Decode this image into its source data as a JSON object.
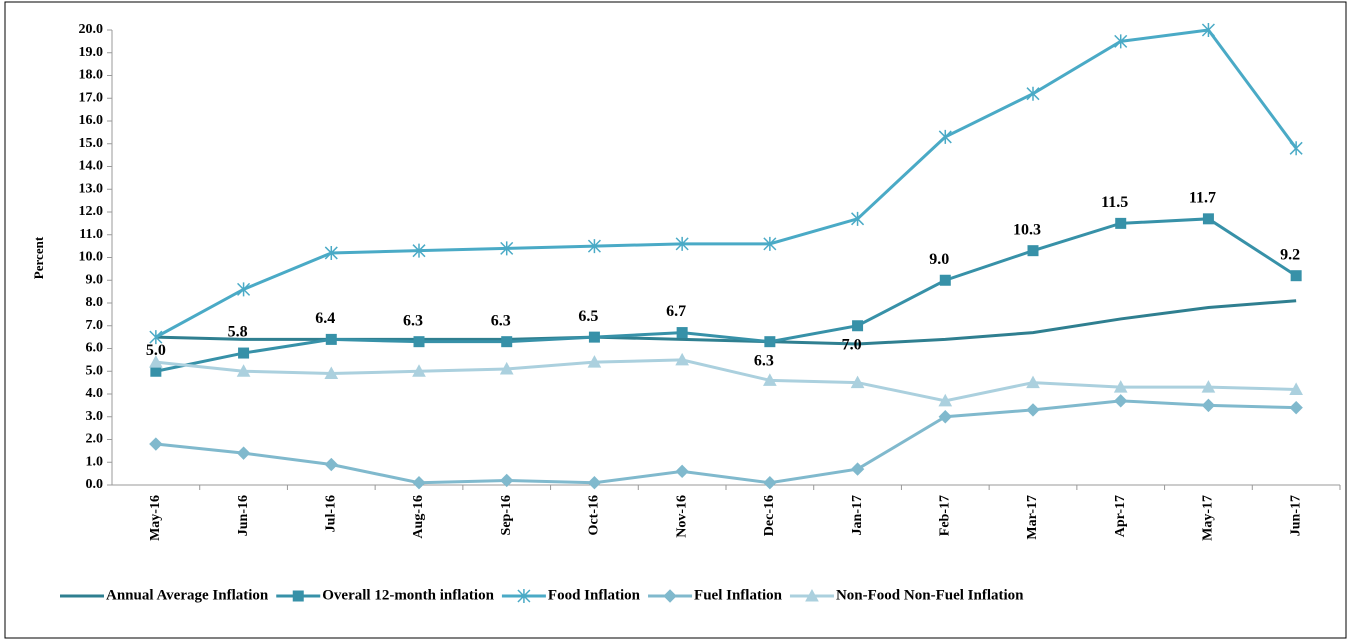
{
  "chart_data": {
    "type": "line",
    "y_label": "Percent",
    "categories": [
      "May-16",
      "Jun-16",
      "Jul-16",
      "Aug-16",
      "Sep-16",
      "Oct-16",
      "Nov-16",
      "Dec-16",
      "Jan-17",
      "Feb-17",
      "Mar-17",
      "Apr-17",
      "May-17",
      "Jun-17"
    ],
    "ylim": [
      0,
      20
    ],
    "yticks": [
      {
        "value": 0,
        "label": "0.0"
      },
      {
        "value": 1,
        "label": "1.0"
      },
      {
        "value": 2,
        "label": "2.0"
      },
      {
        "value": 3,
        "label": "3.0"
      },
      {
        "value": 4,
        "label": "4.0"
      },
      {
        "value": 5,
        "label": "5.0"
      },
      {
        "value": 6,
        "label": "6.0"
      },
      {
        "value": 7,
        "label": "7.0"
      },
      {
        "value": 8,
        "label": "8.0"
      },
      {
        "value": 9,
        "label": "9.0"
      },
      {
        "value": 10,
        "label": "10.0"
      },
      {
        "value": 11,
        "label": "11.0"
      },
      {
        "value": 12,
        "label": "12.0"
      },
      {
        "value": 13,
        "label": "13.0"
      },
      {
        "value": 14,
        "label": "14.0"
      },
      {
        "value": 15,
        "label": "15.0"
      },
      {
        "value": 16,
        "label": "16.0"
      },
      {
        "value": 17,
        "label": "17.0"
      },
      {
        "value": 18,
        "label": "18.0"
      },
      {
        "value": 19,
        "label": "19.0"
      },
      {
        "value": 20,
        "label": "20.0"
      }
    ],
    "grid": false,
    "legend": "bottom",
    "series": [
      {
        "name": "Annual Average Inflation",
        "color": "#2f7f90",
        "marker": "none",
        "values": [
          6.5,
          6.4,
          6.4,
          6.4,
          6.4,
          6.5,
          6.4,
          6.3,
          6.2,
          6.4,
          6.7,
          7.3,
          7.8,
          8.1
        ]
      },
      {
        "name": "Overall 12-month inflation",
        "color": "#3791a8",
        "marker": "square",
        "values": [
          5.0,
          5.8,
          6.4,
          6.3,
          6.3,
          6.5,
          6.7,
          6.3,
          7.0,
          9.0,
          10.3,
          11.5,
          11.7,
          9.2
        ],
        "value_labels": [
          "5.0",
          "5.8",
          "6.4",
          "6.3",
          "6.3",
          "6.5",
          "6.7",
          "6.3",
          "7.0",
          "9.0",
          "10.3",
          "11.5",
          "11.7",
          "9.2"
        ]
      },
      {
        "name": "Food Inflation",
        "color": "#4aaac6",
        "marker": "star",
        "values": [
          6.5,
          8.6,
          10.2,
          10.3,
          10.4,
          10.5,
          10.6,
          10.6,
          11.7,
          15.3,
          17.2,
          19.5,
          20.0,
          14.8
        ]
      },
      {
        "name": "Fuel Inflation",
        "color": "#80b9cd",
        "marker": "diamond",
        "values": [
          1.8,
          1.4,
          0.9,
          0.1,
          0.2,
          0.1,
          0.6,
          0.1,
          0.7,
          3.0,
          3.3,
          3.7,
          3.5,
          3.4
        ]
      },
      {
        "name": "Non-Food Non-Fuel Inflation",
        "color": "#abd0de",
        "marker": "triangle",
        "values": [
          5.4,
          5.0,
          4.9,
          5.0,
          5.1,
          5.4,
          5.5,
          4.6,
          4.5,
          3.7,
          4.5,
          4.3,
          4.3,
          4.2
        ]
      }
    ]
  }
}
